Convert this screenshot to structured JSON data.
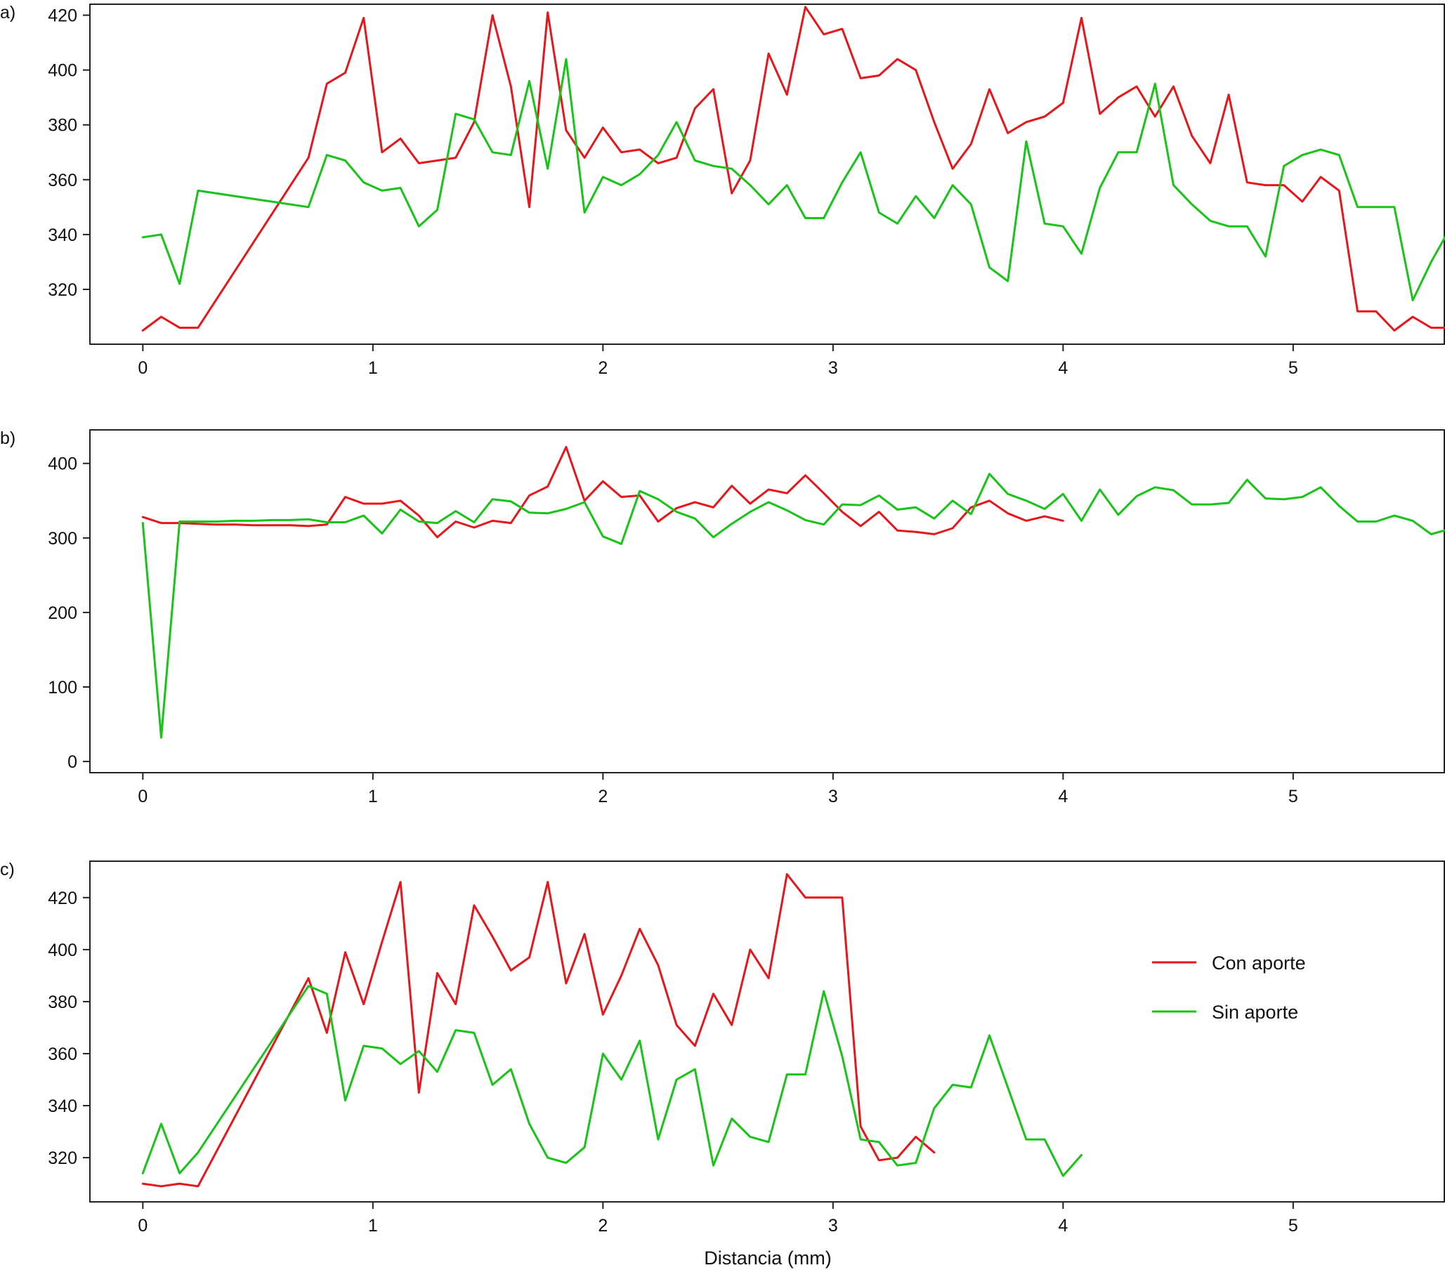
{
  "figure": {
    "xlabel": "Distancia (mm)",
    "legend": [
      {
        "label": "Con aporte",
        "color": "#e8161a"
      },
      {
        "label": "Sin aporte",
        "color": "#17c417"
      }
    ]
  },
  "chart_data": [
    {
      "type": "line",
      "panel_label": "a)",
      "xlim": [
        -0.23,
        5.66
      ],
      "ylim": [
        300,
        424
      ],
      "xticks": [
        0,
        1,
        2,
        3,
        4,
        5
      ],
      "yticks": [
        320,
        340,
        360,
        380,
        400,
        420
      ],
      "grid": false,
      "series": [
        {
          "name": "Con aporte",
          "color": "#e8161a",
          "x": [
            0,
            0.08,
            0.16,
            0.24,
            0.72,
            0.8,
            0.88,
            0.96,
            1.04,
            1.12,
            1.2,
            1.28,
            1.36,
            1.44,
            1.52,
            1.6,
            1.68,
            1.76,
            1.84,
            1.92,
            2.0,
            2.08,
            2.16,
            2.24,
            2.32,
            2.4,
            2.48,
            2.56,
            2.64,
            2.72,
            2.8,
            2.88,
            2.96,
            3.04,
            3.12,
            3.2,
            3.28,
            3.36,
            3.44,
            3.52,
            3.6,
            3.68,
            3.76,
            3.84,
            3.92,
            4.0,
            4.08,
            4.16,
            4.24,
            4.32,
            4.4,
            4.48,
            4.56,
            4.64,
            4.72,
            4.8,
            4.88,
            4.96,
            5.04,
            5.12,
            5.2,
            5.28,
            5.36,
            5.44,
            5.52,
            5.6,
            5.68
          ],
          "y": [
            305,
            310,
            306,
            306,
            368,
            395,
            399,
            419,
            370,
            375,
            366,
            367,
            368,
            381,
            420,
            394,
            350,
            421,
            378,
            368,
            379,
            370,
            371,
            366,
            368,
            386,
            393,
            355,
            367,
            406,
            391,
            423,
            413,
            415,
            397,
            398,
            404,
            400,
            381,
            364,
            373,
            393,
            377,
            381,
            383,
            388,
            419,
            384,
            390,
            394,
            383,
            394,
            376,
            366,
            391,
            359,
            358,
            358,
            352,
            361,
            356,
            312,
            312,
            305,
            310,
            306,
            306
          ]
        },
        {
          "name": "Sin aporte",
          "color": "#17c417",
          "x": [
            0,
            0.08,
            0.16,
            0.24,
            0.72,
            0.8,
            0.88,
            0.96,
            1.04,
            1.12,
            1.2,
            1.28,
            1.36,
            1.44,
            1.52,
            1.6,
            1.68,
            1.76,
            1.84,
            1.92,
            2.0,
            2.08,
            2.16,
            2.24,
            2.32,
            2.4,
            2.48,
            2.56,
            2.64,
            2.72,
            2.8,
            2.88,
            2.96,
            3.04,
            3.12,
            3.2,
            3.28,
            3.36,
            3.44,
            3.52,
            3.6,
            3.68,
            3.76,
            3.84,
            3.92,
            4.0,
            4.08,
            4.16,
            4.24,
            4.32,
            4.4,
            4.48,
            4.56,
            4.64,
            4.72,
            4.8,
            4.88,
            4.96,
            5.04,
            5.12,
            5.2,
            5.28,
            5.36,
            5.44,
            5.52,
            5.6,
            5.68
          ],
          "y": [
            339,
            340,
            322,
            356,
            350,
            369,
            367,
            359,
            356,
            357,
            343,
            349,
            384,
            382,
            370,
            369,
            396,
            364,
            404,
            348,
            361,
            358,
            362,
            369,
            381,
            367,
            365,
            364,
            358,
            351,
            358,
            346,
            346,
            359,
            370,
            348,
            344,
            354,
            346,
            358,
            351,
            328,
            323,
            374,
            344,
            343,
            333,
            357,
            370,
            370,
            395,
            358,
            351,
            345,
            343,
            343,
            332,
            365,
            369,
            371,
            369,
            350,
            350,
            350,
            316,
            330,
            342
          ]
        }
      ]
    },
    {
      "type": "line",
      "panel_label": "b)",
      "xlim": [
        -0.23,
        5.66
      ],
      "ylim": [
        -15,
        445
      ],
      "xticks": [
        0,
        1,
        2,
        3,
        4,
        5
      ],
      "yticks": [
        0,
        100,
        200,
        300,
        400
      ],
      "grid": false,
      "series": [
        {
          "name": "Con aporte",
          "color": "#e8161a",
          "x": [
            0,
            0.08,
            0.16,
            0.24,
            0.32,
            0.4,
            0.48,
            0.56,
            0.64,
            0.72,
            0.8,
            0.88,
            0.96,
            1.04,
            1.12,
            1.2,
            1.28,
            1.36,
            1.44,
            1.52,
            1.6,
            1.68,
            1.76,
            1.84,
            1.92,
            2.0,
            2.08,
            2.16,
            2.24,
            2.32,
            2.4,
            2.48,
            2.56,
            2.64,
            2.72,
            2.8,
            2.88,
            2.96,
            3.04,
            3.12,
            3.2,
            3.28,
            3.36,
            3.44,
            3.52,
            3.6,
            3.68,
            3.76,
            3.84,
            3.92,
            4.0
          ],
          "y": [
            328,
            320,
            320,
            319,
            318,
            318,
            317,
            317,
            317,
            316,
            318,
            355,
            346,
            346,
            350,
            330,
            301,
            322,
            314,
            323,
            320,
            357,
            369,
            422,
            350,
            376,
            355,
            357,
            322,
            340,
            348,
            341,
            370,
            346,
            365,
            360,
            384,
            360,
            335,
            316,
            335,
            310,
            308,
            305,
            313,
            341,
            350,
            333,
            323,
            329,
            323
          ]
        },
        {
          "name": "Sin aporte",
          "color": "#17c417",
          "x": [
            0,
            0.08,
            0.16,
            0.24,
            0.32,
            0.4,
            0.48,
            0.56,
            0.64,
            0.72,
            0.8,
            0.88,
            0.96,
            1.04,
            1.12,
            1.2,
            1.28,
            1.36,
            1.44,
            1.52,
            1.6,
            1.68,
            1.76,
            1.84,
            1.92,
            2.0,
            2.08,
            2.16,
            2.24,
            2.32,
            2.4,
            2.48,
            2.56,
            2.64,
            2.72,
            2.8,
            2.88,
            2.96,
            3.04,
            3.12,
            3.2,
            3.28,
            3.36,
            3.44,
            3.52,
            3.6,
            3.68,
            3.76,
            3.84,
            3.92,
            4.0,
            4.08,
            4.16,
            4.24,
            4.32,
            4.4,
            4.48,
            4.56,
            4.64,
            4.72,
            4.8,
            4.88,
            4.96,
            5.04,
            5.12,
            5.2,
            5.28,
            5.36,
            5.44,
            5.52,
            5.6,
            5.68
          ],
          "y": [
            320,
            32,
            322,
            322,
            322,
            323,
            323,
            324,
            324,
            325,
            321,
            321,
            330,
            306,
            338,
            322,
            320,
            336,
            321,
            352,
            349,
            334,
            333,
            339,
            348,
            302,
            292,
            363,
            352,
            335,
            326,
            301,
            319,
            335,
            348,
            337,
            324,
            318,
            345,
            344,
            357,
            338,
            341,
            326,
            350,
            332,
            386,
            359,
            350,
            339,
            359,
            323,
            365,
            331,
            356,
            368,
            364,
            345,
            345,
            347,
            378,
            353,
            352,
            355,
            368,
            343,
            322,
            322,
            330,
            323,
            305,
            312
          ]
        }
      ]
    },
    {
      "type": "line",
      "panel_label": "c)",
      "xlim": [
        -0.23,
        5.66
      ],
      "ylim": [
        303,
        434
      ],
      "xticks": [
        0,
        1,
        2,
        3,
        4,
        5
      ],
      "yticks": [
        320,
        340,
        360,
        380,
        400,
        420
      ],
      "grid": false,
      "legend_position": "right",
      "series": [
        {
          "name": "Con aporte",
          "color": "#e8161a",
          "x": [
            0,
            0.08,
            0.16,
            0.24,
            0.72,
            0.8,
            0.88,
            0.96,
            1.04,
            1.12,
            1.2,
            1.28,
            1.36,
            1.44,
            1.52,
            1.6,
            1.68,
            1.76,
            1.84,
            1.92,
            2.0,
            2.08,
            2.16,
            2.24,
            2.32,
            2.4,
            2.48,
            2.56,
            2.64,
            2.72,
            2.8,
            2.88,
            2.96,
            3.04,
            3.12,
            3.2,
            3.28,
            3.36,
            3.44
          ],
          "y": [
            310,
            309,
            310,
            309,
            389,
            368,
            399,
            379,
            403,
            426,
            345,
            391,
            379,
            417,
            405,
            392,
            397,
            426,
            387,
            406,
            375,
            390,
            408,
            394,
            371,
            363,
            383,
            371,
            400,
            389,
            429,
            420,
            420,
            420,
            332,
            319,
            320,
            328,
            322
          ]
        },
        {
          "name": "Sin aporte",
          "color": "#17c417",
          "x": [
            0,
            0.08,
            0.16,
            0.24,
            0.72,
            0.8,
            0.88,
            0.96,
            1.04,
            1.12,
            1.2,
            1.28,
            1.36,
            1.44,
            1.52,
            1.6,
            1.68,
            1.76,
            1.84,
            1.92,
            2.0,
            2.08,
            2.16,
            2.24,
            2.32,
            2.4,
            2.48,
            2.56,
            2.64,
            2.72,
            2.8,
            2.88,
            2.96,
            3.04,
            3.12,
            3.2,
            3.28,
            3.36,
            3.44,
            3.52,
            3.6,
            3.68,
            3.76,
            3.84,
            3.92,
            4.0,
            4.08
          ],
          "y": [
            314,
            333,
            314,
            322,
            386,
            383,
            342,
            363,
            362,
            356,
            361,
            353,
            369,
            368,
            348,
            354,
            333,
            320,
            318,
            324,
            360,
            350,
            365,
            327,
            350,
            354,
            317,
            335,
            328,
            326,
            352,
            352,
            384,
            359,
            327,
            326,
            317,
            318,
            339,
            348,
            347,
            367,
            347,
            327,
            327,
            313,
            321
          ]
        }
      ]
    }
  ]
}
